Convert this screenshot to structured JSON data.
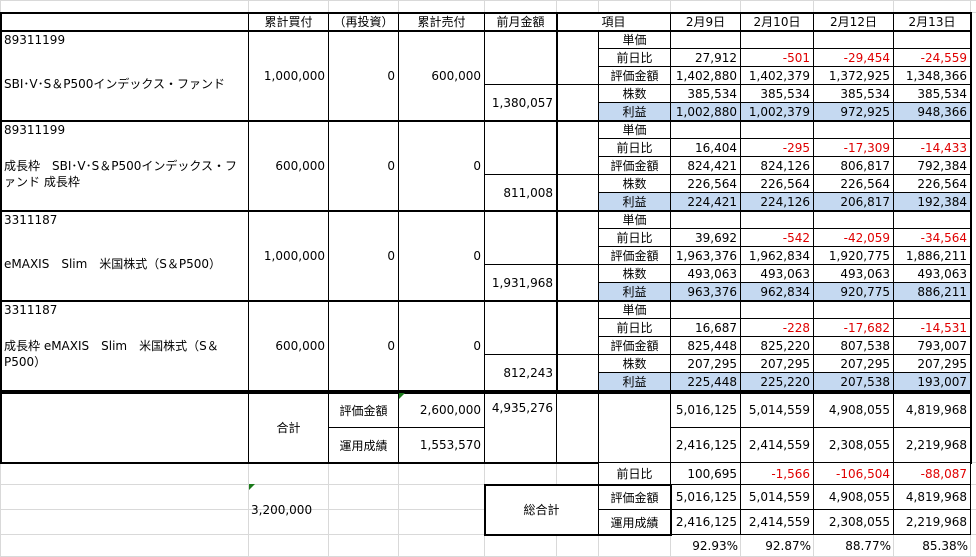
{
  "header": {
    "buy": "累計買付",
    "reinvest": "（再投資）",
    "sell": "累計売付",
    "prev_month": "前月金額",
    "item": "項目",
    "dates": [
      "2月9日",
      "2月10日",
      "2月12日",
      "2月13日"
    ]
  },
  "row_labels": [
    "単価",
    "前日比",
    "評価金額",
    "株数",
    "利益"
  ],
  "funds": [
    {
      "code": "89311199",
      "name": "SBI･V･S＆P500インデックス・ファンド",
      "buy": "1,000,000",
      "reinvest": "0",
      "sell": "600,000",
      "prev_month": "1,380,057",
      "rows": [
        [
          "",
          "",
          "",
          ""
        ],
        [
          "27,912",
          "-501",
          "-29,454",
          "-24,559"
        ],
        [
          "1,402,880",
          "1,402,379",
          "1,372,925",
          "1,348,366"
        ],
        [
          "385,534",
          "385,534",
          "385,534",
          "385,534"
        ],
        [
          "1,002,880",
          "1,002,379",
          "972,925",
          "948,366"
        ]
      ]
    },
    {
      "code": "89311199",
      "name": "成長枠　SBI･V･S＆P500インデックス・ファンド 成長枠",
      "buy": "600,000",
      "reinvest": "0",
      "sell": "0",
      "prev_month": "811,008",
      "rows": [
        [
          "",
          "",
          "",
          ""
        ],
        [
          "16,404",
          "-295",
          "-17,309",
          "-14,433"
        ],
        [
          "824,421",
          "824,126",
          "806,817",
          "792,384"
        ],
        [
          "226,564",
          "226,564",
          "226,564",
          "226,564"
        ],
        [
          "224,421",
          "224,126",
          "206,817",
          "192,384"
        ]
      ]
    },
    {
      "code": "3311187",
      "name": "eMAXIS　Slim　米国株式（S＆P500）",
      "buy": "1,000,000",
      "reinvest": "0",
      "sell": "0",
      "prev_month": "1,931,968",
      "rows": [
        [
          "",
          "",
          "",
          ""
        ],
        [
          "39,692",
          "-542",
          "-42,059",
          "-34,564"
        ],
        [
          "1,963,376",
          "1,962,834",
          "1,920,775",
          "1,886,211"
        ],
        [
          "493,063",
          "493,063",
          "493,063",
          "493,063"
        ],
        [
          "963,376",
          "962,834",
          "920,775",
          "886,211"
        ]
      ]
    },
    {
      "code": "3311187",
      "name": "成長枠 eMAXIS　Slim　米国株式（S＆P500）",
      "buy": "600,000",
      "reinvest": "0",
      "sell": "0",
      "prev_month": "812,243",
      "rows": [
        [
          "",
          "",
          "",
          ""
        ],
        [
          "16,687",
          "-228",
          "-17,682",
          "-14,531"
        ],
        [
          "825,448",
          "825,220",
          "807,538",
          "793,007"
        ],
        [
          "207,295",
          "207,295",
          "207,295",
          "207,295"
        ],
        [
          "225,448",
          "225,220",
          "207,538",
          "193,007"
        ]
      ]
    }
  ],
  "total": {
    "label": "合計",
    "valuation_label": "評価金額",
    "performance_label": "運用成績",
    "valuation_buy": "2,600,000",
    "performance_buy": "1,553,570",
    "prev_month": "4,935,276",
    "valuation": [
      "5,016,125",
      "5,014,559",
      "4,908,055",
      "4,819,968"
    ],
    "performance": [
      "2,416,125",
      "2,414,559",
      "2,308,055",
      "2,219,968"
    ]
  },
  "grand_total": {
    "label": "総合計",
    "diff_label": "前日比",
    "valuation_label": "評価金額",
    "performance_label": "運用成績",
    "invested": "3,200,000",
    "diff": [
      "100,695",
      "-1,566",
      "-106,504",
      "-88,087"
    ],
    "valuation": [
      "5,016,125",
      "5,014,559",
      "4,908,055",
      "4,819,968"
    ],
    "performance": [
      "2,416,125",
      "2,414,559",
      "2,308,055",
      "2,219,968"
    ],
    "ratio": [
      "92.93%",
      "92.87%",
      "88.77%",
      "85.38%"
    ]
  },
  "colors": {
    "profit_row": "#c5d9f1",
    "negative": "#e00000",
    "gridline": "#d9d9d9"
  }
}
